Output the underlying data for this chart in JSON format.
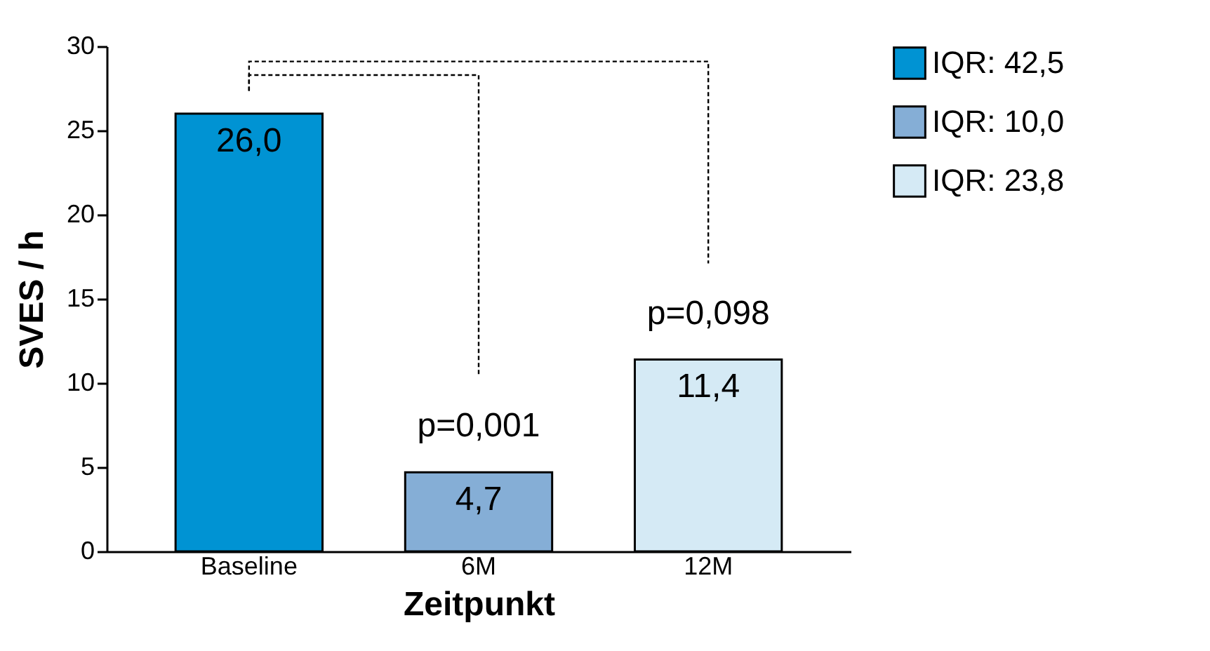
{
  "chart_data": {
    "type": "bar",
    "xlabel": "Zeitpunkt",
    "ylabel": "SVES / h",
    "categories": [
      "Baseline",
      "6M",
      "12M"
    ],
    "series": [
      {
        "name": "IQR: 42,5",
        "color": "#0093d3",
        "values": [
          26.0,
          null,
          null
        ],
        "value_labels": [
          "26,0",
          null,
          null
        ]
      },
      {
        "name": "IQR: 10,0",
        "color": "#85aed6",
        "values": [
          null,
          4.7,
          null
        ],
        "value_labels": [
          null,
          "4,7",
          null
        ]
      },
      {
        "name": "IQR: 23,8",
        "color": "#d5eaf5",
        "values": [
          null,
          null,
          11.4
        ],
        "value_labels": [
          null,
          null,
          "11,4"
        ]
      }
    ],
    "annotations": [
      "p=0,001",
      "p=0,098"
    ],
    "ylim": [
      0,
      30
    ],
    "yticks": [
      0,
      5,
      10,
      15,
      20,
      25,
      30
    ],
    "grid": false,
    "legend": "right"
  }
}
